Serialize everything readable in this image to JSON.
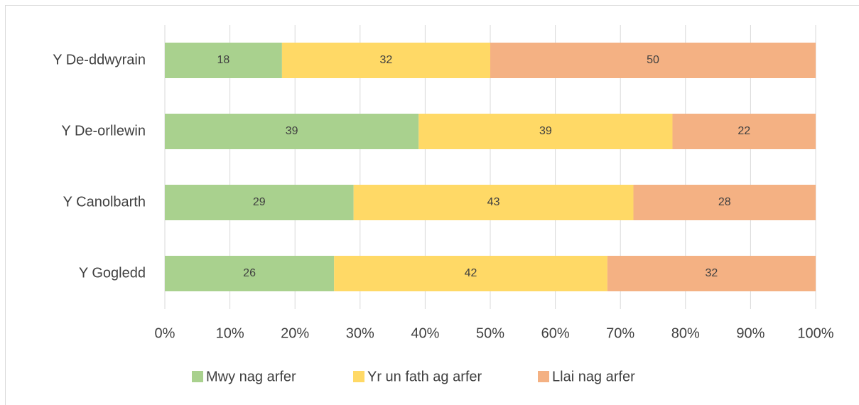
{
  "chart_data": {
    "type": "stacked_bar_horizontal",
    "categories": [
      "Y De-ddwyrain",
      "Y De-orllewin",
      "Y Canolbarth",
      "Y Gogledd"
    ],
    "series": [
      {
        "name": "Mwy nag arfer",
        "color": "#a9d18e",
        "values": [
          18,
          39,
          29,
          26
        ]
      },
      {
        "name": "Yr un fath ag arfer",
        "color": "#ffd966",
        "values": [
          32,
          39,
          43,
          42
        ]
      },
      {
        "name": "Llai nag arfer",
        "color": "#f4b183",
        "values": [
          50,
          22,
          28,
          32
        ]
      }
    ],
    "xlim": [
      0,
      100
    ],
    "xticks": [
      {
        "value": 0,
        "label": "0%"
      },
      {
        "value": 10,
        "label": "10%"
      },
      {
        "value": 20,
        "label": "20%"
      },
      {
        "value": 30,
        "label": "30%"
      },
      {
        "value": 40,
        "label": "40%"
      },
      {
        "value": 50,
        "label": "50%"
      },
      {
        "value": 60,
        "label": "60%"
      },
      {
        "value": 70,
        "label": "70%"
      },
      {
        "value": 80,
        "label": "80%"
      },
      {
        "value": 90,
        "label": "90%"
      },
      {
        "value": 100,
        "label": "100%"
      }
    ],
    "grid": true,
    "legend": "bottom"
  }
}
